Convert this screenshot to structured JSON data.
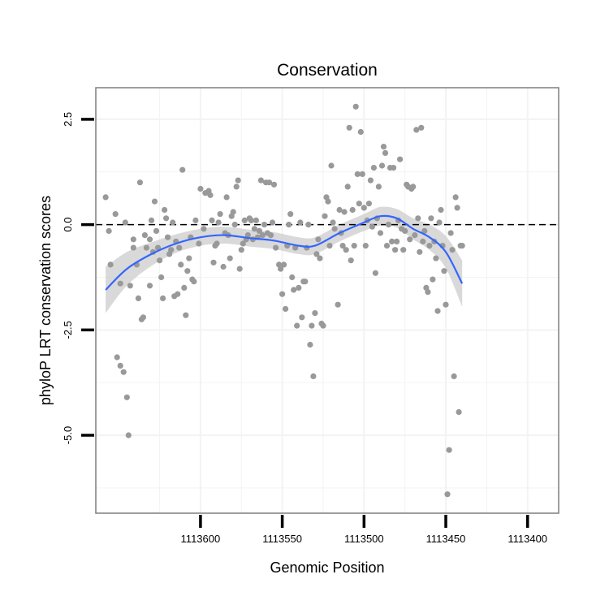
{
  "chart_data": {
    "type": "scatter",
    "title": "Conservation",
    "xlabel": "Genomic Position",
    "ylabel": "phyloP LRT conservation scores",
    "x_reversed": true,
    "xlim": [
      1113664,
      1113381
    ],
    "ylim": [
      -6.85,
      3.25
    ],
    "x_ticks": [
      1113600,
      1113550,
      1113500,
      1113450,
      1113400
    ],
    "x_tick_labels": [
      "1113600",
      "1113550",
      "1113500",
      "1113450",
      "1113400"
    ],
    "y_ticks": [
      2.5,
      0.0,
      -2.5,
      -5.0
    ],
    "y_tick_labels": [
      "2.5",
      "0.0",
      "-2.5",
      "-5.0"
    ],
    "reference_line": {
      "y": 0,
      "style": "dashed"
    },
    "colors": {
      "points": "#999999",
      "smooth_line": "#3366ff",
      "confidence_band": "#cccccc",
      "panel_border": "#7f7f7f",
      "grid": "#f3f3f3"
    },
    "points": [
      [
        1113658,
        0.65
      ],
      [
        1113656,
        -0.15
      ],
      [
        1113655,
        -0.95
      ],
      [
        1113652,
        0.25
      ],
      [
        1113651,
        -3.15
      ],
      [
        1113649,
        -1.4
      ],
      [
        1113649,
        -3.35
      ],
      [
        1113647,
        -3.5
      ],
      [
        1113646,
        0.05
      ],
      [
        1113645,
        -4.1
      ],
      [
        1113644,
        -5.0
      ],
      [
        1113643,
        -1.45
      ],
      [
        1113641,
        -0.55
      ],
      [
        1113641,
        -0.35
      ],
      [
        1113639,
        -0.95
      ],
      [
        1113638,
        -1.75
      ],
      [
        1113637,
        1.0
      ],
      [
        1113636,
        -2.25
      ],
      [
        1113635,
        -2.2
      ],
      [
        1113634,
        -0.25
      ],
      [
        1113633,
        -0.55
      ],
      [
        1113631,
        -0.35
      ],
      [
        1113631,
        -1.45
      ],
      [
        1113630,
        0.1
      ],
      [
        1113629,
        -0.65
      ],
      [
        1113628,
        0.55
      ],
      [
        1113627,
        -0.15
      ],
      [
        1113626,
        -0.55
      ],
      [
        1113625,
        -0.85
      ],
      [
        1113624,
        -1.25
      ],
      [
        1113623,
        -1.75
      ],
      [
        1113622,
        0.35
      ],
      [
        1113621,
        0.15
      ],
      [
        1113620,
        -0.3
      ],
      [
        1113619,
        -0.7
      ],
      [
        1113618,
        -0.6
      ],
      [
        1113617,
        0.05
      ],
      [
        1113616,
        -1.7
      ],
      [
        1113615,
        -0.4
      ],
      [
        1113614,
        -1.65
      ],
      [
        1113613,
        -0.55
      ],
      [
        1113612,
        -0.95
      ],
      [
        1113611,
        1.3
      ],
      [
        1113610,
        -1.5
      ],
      [
        1113609,
        -2.15
      ],
      [
        1113608,
        -1.1
      ],
      [
        1113607,
        -0.8
      ],
      [
        1113606,
        -0.3
      ],
      [
        1113605,
        -1.3
      ],
      [
        1113604,
        -1.35
      ],
      [
        1113603,
        0.1
      ],
      [
        1113601,
        -0.45
      ],
      [
        1113600,
        0.85
      ],
      [
        1113598,
        -0.1
      ],
      [
        1113597,
        0.75
      ],
      [
        1113595,
        0.8
      ],
      [
        1113594,
        0.7
      ],
      [
        1113593,
        0.1
      ],
      [
        1113592,
        -0.9
      ],
      [
        1113591,
        -0.5
      ],
      [
        1113590,
        -0.45
      ],
      [
        1113589,
        0.05
      ],
      [
        1113588,
        0.25
      ],
      [
        1113586,
        -1.0
      ],
      [
        1113585,
        -0.2
      ],
      [
        1113584,
        0.65
      ],
      [
        1113583,
        -0.25
      ],
      [
        1113582,
        -0.8
      ],
      [
        1113581,
        0.2
      ],
      [
        1113580,
        0.3
      ],
      [
        1113579,
        0.0
      ],
      [
        1113578,
        0.9
      ],
      [
        1113577,
        1.05
      ],
      [
        1113576,
        -1.05
      ],
      [
        1113575,
        -0.6
      ],
      [
        1113574,
        -0.45
      ],
      [
        1113573,
        0.1
      ],
      [
        1113572,
        -0.35
      ],
      [
        1113571,
        -0.25
      ],
      [
        1113570,
        0.15
      ],
      [
        1113569,
        0.1
      ],
      [
        1113568,
        -0.35
      ],
      [
        1113567,
        -0.1
      ],
      [
        1113566,
        0.1
      ],
      [
        1113565,
        -0.3
      ],
      [
        1113564,
        -0.15
      ],
      [
        1113563,
        1.05
      ],
      [
        1113562,
        -0.25
      ],
      [
        1113561,
        0.0
      ],
      [
        1113560,
        1.0
      ],
      [
        1113559,
        -0.2
      ],
      [
        1113558,
        1.0
      ],
      [
        1113557,
        -0.25
      ],
      [
        1113556,
        0.05
      ],
      [
        1113555,
        0.95
      ],
      [
        1113554,
        -0.55
      ],
      [
        1113552,
        -0.95
      ],
      [
        1113551,
        -1.05
      ],
      [
        1113550,
        -1.65
      ],
      [
        1113549,
        -0.95
      ],
      [
        1113548,
        -2.0
      ],
      [
        1113547,
        -0.5
      ],
      [
        1113546,
        0.0
      ],
      [
        1113545,
        0.25
      ],
      [
        1113544,
        -1.25
      ],
      [
        1113543,
        -1.55
      ],
      [
        1113542,
        -0.55
      ],
      [
        1113541,
        -2.4
      ],
      [
        1113540,
        -1.5
      ],
      [
        1113539,
        0.05
      ],
      [
        1113538,
        -2.2
      ],
      [
        1113537,
        -1.35
      ],
      [
        1113536,
        -1.35
      ],
      [
        1113535,
        -0.55
      ],
      [
        1113534,
        0.0
      ],
      [
        1113533,
        -2.85
      ],
      [
        1113532,
        -2.4
      ],
      [
        1113531,
        -3.6
      ],
      [
        1113530,
        -2.1
      ],
      [
        1113529,
        -0.7
      ],
      [
        1113528,
        -0.35
      ],
      [
        1113527,
        -0.8
      ],
      [
        1113526,
        -2.35
      ],
      [
        1113525,
        -2.4
      ],
      [
        1113524,
        0.2
      ],
      [
        1113523,
        0.65
      ],
      [
        1113522,
        0.55
      ],
      [
        1113521,
        -0.5
      ],
      [
        1113520,
        1.4
      ],
      [
        1113519,
        0.05
      ],
      [
        1113518,
        -0.1
      ],
      [
        1113516,
        -1.9
      ],
      [
        1113515,
        0.35
      ],
      [
        1113514,
        -0.2
      ],
      [
        1113513,
        -0.5
      ],
      [
        1113512,
        0.3
      ],
      [
        1113511,
        -0.6
      ],
      [
        1113510,
        0.9
      ],
      [
        1113509,
        2.3
      ],
      [
        1113508,
        -0.85
      ],
      [
        1113507,
        0.35
      ],
      [
        1113506,
        -0.5
      ],
      [
        1113505,
        2.8
      ],
      [
        1113504,
        1.2
      ],
      [
        1113503,
        0.5
      ],
      [
        1113502,
        2.2
      ],
      [
        1113501,
        1.2
      ],
      [
        1113500,
        0.4
      ],
      [
        1113499,
        -0.5
      ],
      [
        1113498,
        0.1
      ],
      [
        1113497,
        0.5
      ],
      [
        1113496,
        1.05
      ],
      [
        1113495,
        -0.05
      ],
      [
        1113494,
        1.35
      ],
      [
        1113493,
        -1.15
      ],
      [
        1113492,
        0.15
      ],
      [
        1113491,
        0.9
      ],
      [
        1113490,
        -0.2
      ],
      [
        1113489,
        1.4
      ],
      [
        1113488,
        1.85
      ],
      [
        1113487,
        1.7
      ],
      [
        1113486,
        -0.5
      ],
      [
        1113485,
        0.0
      ],
      [
        1113484,
        1.35
      ],
      [
        1113483,
        -0.4
      ],
      [
        1113482,
        1.35
      ],
      [
        1113481,
        -0.6
      ],
      [
        1113480,
        -0.4
      ],
      [
        1113479,
        0.1
      ],
      [
        1113478,
        1.55
      ],
      [
        1113477,
        -0.1
      ],
      [
        1113476,
        -0.6
      ],
      [
        1113475,
        -0.15
      ],
      [
        1113474,
        0.95
      ],
      [
        1113473,
        0.9
      ],
      [
        1113472,
        -0.35
      ],
      [
        1113471,
        0.85
      ],
      [
        1113470,
        0.9
      ],
      [
        1113469,
        -0.25
      ],
      [
        1113468,
        2.25
      ],
      [
        1113467,
        0.15
      ],
      [
        1113466,
        -0.65
      ],
      [
        1113465,
        2.3
      ],
      [
        1113464,
        -0.4
      ],
      [
        1113463,
        -0.15
      ],
      [
        1113462,
        -1.5
      ],
      [
        1113461,
        -1.6
      ],
      [
        1113460,
        -0.5
      ],
      [
        1113459,
        0.15
      ],
      [
        1113458,
        -1.3
      ],
      [
        1113457,
        -0.4
      ],
      [
        1113456,
        -0.8
      ],
      [
        1113455,
        -2.05
      ],
      [
        1113454,
        0.05
      ],
      [
        1113453,
        0.35
      ],
      [
        1113452,
        -0.5
      ],
      [
        1113451,
        -1.1
      ],
      [
        1113450,
        -1.9
      ],
      [
        1113449,
        -6.4
      ],
      [
        1113448,
        -5.35
      ],
      [
        1113447,
        -0.2
      ],
      [
        1113446,
        -0.6
      ],
      [
        1113445,
        -3.6
      ],
      [
        1113444,
        0.65
      ],
      [
        1113443,
        0.4
      ],
      [
        1113442,
        -4.45
      ],
      [
        1113441,
        -0.5
      ],
      [
        1113440,
        -0.5
      ]
    ],
    "smooth": {
      "x": [
        1113658,
        1113645,
        1113630,
        1113615,
        1113600,
        1113585,
        1113570,
        1113555,
        1113540,
        1113530,
        1113515,
        1113500,
        1113490,
        1113480,
        1113470,
        1113460,
        1113450,
        1113440
      ],
      "y": [
        -1.55,
        -1.05,
        -0.7,
        -0.45,
        -0.3,
        -0.25,
        -0.32,
        -0.38,
        -0.5,
        -0.5,
        -0.2,
        0.05,
        0.2,
        0.15,
        -0.1,
        -0.3,
        -0.65,
        -1.4
      ],
      "band_halfwidth": [
        0.55,
        0.4,
        0.28,
        0.22,
        0.2,
        0.2,
        0.2,
        0.2,
        0.2,
        0.2,
        0.2,
        0.2,
        0.22,
        0.22,
        0.25,
        0.3,
        0.38,
        0.55
      ]
    }
  }
}
